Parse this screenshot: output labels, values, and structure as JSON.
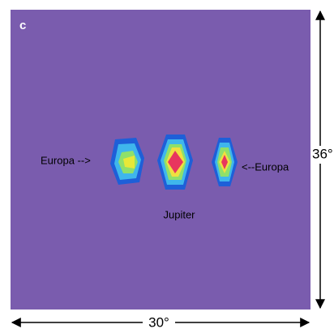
{
  "panel_label": "c",
  "labels": {
    "left_europa": "Europa -->",
    "right_europa": "<--Europa",
    "jupiter": "Jupiter"
  },
  "dimensions": {
    "height": "36°",
    "width": "30°"
  }
}
